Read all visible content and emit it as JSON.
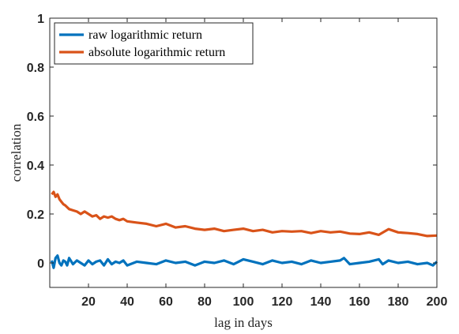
{
  "chart_data": {
    "type": "line",
    "title": "",
    "xlabel": "lag in days",
    "ylabel": "correlation",
    "xlim": [
      0,
      200
    ],
    "ylim": [
      -0.1,
      1
    ],
    "xticks": [
      20,
      40,
      60,
      80,
      100,
      120,
      140,
      160,
      180,
      200
    ],
    "yticks": [
      0,
      0.2,
      0.4,
      0.6,
      0.8,
      1
    ],
    "ytick_labels": [
      "0",
      "0.2",
      "0.4",
      "0.6",
      "0.8",
      "1"
    ],
    "grid": false,
    "legend": "top-left",
    "series": [
      {
        "name": "raw logarithmic return",
        "color": "#0072BD",
        "x": [
          1,
          2,
          3,
          4,
          5,
          6,
          7,
          8,
          9,
          10,
          12,
          14,
          16,
          18,
          20,
          22,
          24,
          26,
          28,
          30,
          32,
          34,
          36,
          38,
          40,
          45,
          50,
          55,
          60,
          65,
          70,
          75,
          80,
          85,
          90,
          95,
          100,
          105,
          110,
          115,
          120,
          125,
          130,
          135,
          140,
          145,
          150,
          152,
          155,
          160,
          165,
          170,
          172,
          175,
          180,
          185,
          190,
          195,
          198,
          200
        ],
        "y": [
          0.01,
          -0.02,
          0.02,
          0.03,
          0.0,
          -0.01,
          0.01,
          0.005,
          -0.01,
          0.02,
          -0.005,
          0.01,
          0.0,
          -0.01,
          0.01,
          -0.005,
          0.005,
          0.01,
          -0.01,
          0.015,
          -0.005,
          0.005,
          0.0,
          0.01,
          -0.01,
          0.005,
          0.0,
          -0.005,
          0.01,
          0.0,
          0.005,
          -0.01,
          0.005,
          0.0,
          0.01,
          -0.005,
          0.015,
          0.005,
          -0.005,
          0.01,
          0.0,
          0.005,
          -0.005,
          0.01,
          0.0,
          0.005,
          0.01,
          0.02,
          -0.005,
          0.0,
          0.005,
          0.015,
          -0.005,
          0.01,
          0.0,
          0.005,
          -0.005,
          0.0,
          -0.01,
          0.005
        ]
      },
      {
        "name": "absolute logarithmic return",
        "color": "#D95319",
        "x": [
          1,
          2,
          3,
          4,
          5,
          6,
          7,
          8,
          10,
          12,
          14,
          16,
          18,
          20,
          22,
          24,
          26,
          28,
          30,
          32,
          34,
          36,
          38,
          40,
          45,
          50,
          55,
          60,
          65,
          70,
          75,
          80,
          85,
          90,
          95,
          100,
          105,
          110,
          115,
          120,
          125,
          130,
          135,
          140,
          145,
          150,
          155,
          160,
          165,
          170,
          175,
          180,
          185,
          190,
          195,
          200
        ],
        "y": [
          0.28,
          0.29,
          0.27,
          0.28,
          0.26,
          0.25,
          0.24,
          0.235,
          0.22,
          0.215,
          0.21,
          0.2,
          0.21,
          0.2,
          0.19,
          0.195,
          0.18,
          0.19,
          0.185,
          0.19,
          0.18,
          0.175,
          0.18,
          0.17,
          0.165,
          0.16,
          0.15,
          0.16,
          0.145,
          0.15,
          0.14,
          0.135,
          0.14,
          0.13,
          0.135,
          0.14,
          0.13,
          0.135,
          0.125,
          0.13,
          0.128,
          0.13,
          0.122,
          0.13,
          0.125,
          0.128,
          0.12,
          0.118,
          0.125,
          0.115,
          0.138,
          0.125,
          0.122,
          0.118,
          0.11,
          0.112
        ]
      }
    ]
  }
}
